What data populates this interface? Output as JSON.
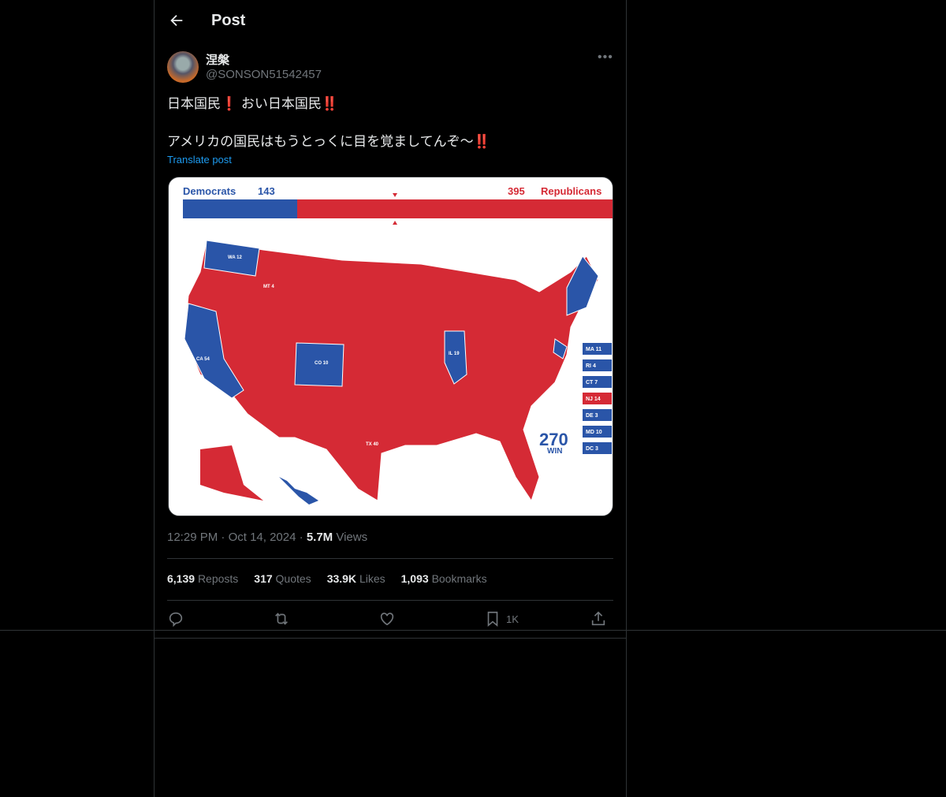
{
  "header": {
    "title": "Post",
    "back_icon": "arrow-left-icon"
  },
  "post": {
    "author_name": "涅槃",
    "author_handle": "@SONSON51542457",
    "line1": "日本国民",
    "line1_b": "おい日本国民",
    "line2": "アメリカの国民はもうとっくに目を覚ましてんぞ〜",
    "emoji_single": "❗",
    "emoji_double": "‼️",
    "translate_label": "Translate post",
    "time": "12:29 PM",
    "date": "Oct 14, 2024",
    "views_count": "5.7M",
    "views_label": "Views"
  },
  "media": {
    "dem_label": "Democrats",
    "dem_votes": "143",
    "rep_votes": "395",
    "rep_label": "Republicans",
    "dem_color": "#2a55a8",
    "rep_color": "#d52a35",
    "logo_number": "270",
    "logo_text": "WIN",
    "side_boxes": [
      {
        "state": "MA",
        "votes": "11",
        "party": "D"
      },
      {
        "state": "RI",
        "votes": "4",
        "party": "D"
      },
      {
        "state": "CT",
        "votes": "7",
        "party": "D"
      },
      {
        "state": "NJ",
        "votes": "14",
        "party": "R"
      },
      {
        "state": "DE",
        "votes": "3",
        "party": "D"
      },
      {
        "state": "MD",
        "votes": "10",
        "party": "D"
      },
      {
        "state": "DC",
        "votes": "3",
        "party": "D"
      }
    ]
  },
  "stats": {
    "reposts_count": "6,139",
    "reposts_label": "Reposts",
    "quotes_count": "317",
    "quotes_label": "Quotes",
    "likes_count": "33.9K",
    "likes_label": "Likes",
    "bookmarks_count": "1,093",
    "bookmarks_label": "Bookmarks"
  },
  "actions": {
    "bookmark_count": "1K"
  }
}
